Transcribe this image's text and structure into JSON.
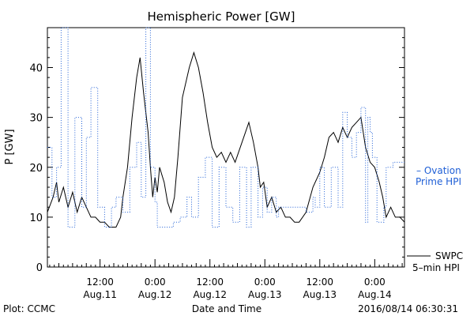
{
  "chart_data": {
    "type": "line",
    "title": "Hemispheric Power [GW]",
    "xlabel": "Date and Time",
    "ylabel": "P [GW]",
    "ylim": [
      0,
      48
    ],
    "xlim": [
      "2016-08-11T00:30",
      "2016-08-14T06:30"
    ],
    "y_ticks": [
      0,
      10,
      20,
      30,
      40
    ],
    "x_ticks": [
      {
        "t": "2016-08-11T12:00",
        "time": "12:00",
        "date": "Aug.11"
      },
      {
        "t": "2016-08-12T00:00",
        "time": "0:00",
        "date": "Aug.12"
      },
      {
        "t": "2016-08-12T12:00",
        "time": "12:00",
        "date": "Aug.12"
      },
      {
        "t": "2016-08-13T00:00",
        "time": "0:00",
        "date": "Aug.13"
      },
      {
        "t": "2016-08-13T12:00",
        "time": "12:00",
        "date": "Aug.13"
      },
      {
        "t": "2016-08-14T00:00",
        "time": "0:00",
        "date": "Aug.14"
      }
    ],
    "grid": false,
    "legend_position": "right",
    "series": [
      {
        "name": "SWPC 5-min HPI",
        "color": "#000000",
        "style": "solid",
        "points": [
          [
            "2016-08-11T00:30",
            11
          ],
          [
            "2016-08-11T01:45",
            14
          ],
          [
            "2016-08-11T02:30",
            17
          ],
          [
            "2016-08-11T03:00",
            13
          ],
          [
            "2016-08-11T04:00",
            16
          ],
          [
            "2016-08-11T05:00",
            12
          ],
          [
            "2016-08-11T06:00",
            15
          ],
          [
            "2016-08-11T07:00",
            11
          ],
          [
            "2016-08-11T08:00",
            14
          ],
          [
            "2016-08-11T09:00",
            12
          ],
          [
            "2016-08-11T10:00",
            10
          ],
          [
            "2016-08-11T11:00",
            10
          ],
          [
            "2016-08-11T12:00",
            9
          ],
          [
            "2016-08-11T13:00",
            9
          ],
          [
            "2016-08-11T14:00",
            8
          ],
          [
            "2016-08-11T15:30",
            8
          ],
          [
            "2016-08-11T16:30",
            10
          ],
          [
            "2016-08-11T17:00",
            14
          ],
          [
            "2016-08-11T18:00",
            20
          ],
          [
            "2016-08-11T19:00",
            30
          ],
          [
            "2016-08-11T20:00",
            38
          ],
          [
            "2016-08-11T20:45",
            42
          ],
          [
            "2016-08-11T21:30",
            35
          ],
          [
            "2016-08-11T22:30",
            27
          ],
          [
            "2016-08-11T23:00",
            20
          ],
          [
            "2016-08-11T23:30",
            14
          ],
          [
            "2016-08-12T00:00",
            18
          ],
          [
            "2016-08-12T00:30",
            15
          ],
          [
            "2016-08-12T01:00",
            20
          ],
          [
            "2016-08-12T02:00",
            17
          ],
          [
            "2016-08-12T02:45",
            13
          ],
          [
            "2016-08-12T03:30",
            11
          ],
          [
            "2016-08-12T04:15",
            14
          ],
          [
            "2016-08-12T05:00",
            22
          ],
          [
            "2016-08-12T06:00",
            34
          ],
          [
            "2016-08-12T07:30",
            40
          ],
          [
            "2016-08-12T08:30",
            43
          ],
          [
            "2016-08-12T09:30",
            40
          ],
          [
            "2016-08-12T10:30",
            35
          ],
          [
            "2016-08-12T11:30",
            29
          ],
          [
            "2016-08-12T12:30",
            24
          ],
          [
            "2016-08-12T13:30",
            22
          ],
          [
            "2016-08-12T14:30",
            23
          ],
          [
            "2016-08-12T15:30",
            21
          ],
          [
            "2016-08-12T16:30",
            23
          ],
          [
            "2016-08-12T17:30",
            21
          ],
          [
            "2016-08-12T19:00",
            25
          ],
          [
            "2016-08-12T20:30",
            29
          ],
          [
            "2016-08-12T21:30",
            25
          ],
          [
            "2016-08-12T22:30",
            20
          ],
          [
            "2016-08-12T23:00",
            16
          ],
          [
            "2016-08-12T23:45",
            17
          ],
          [
            "2016-08-13T00:30",
            12
          ],
          [
            "2016-08-13T01:30",
            14
          ],
          [
            "2016-08-13T02:30",
            11
          ],
          [
            "2016-08-13T03:30",
            12
          ],
          [
            "2016-08-13T04:30",
            10
          ],
          [
            "2016-08-13T05:30",
            10
          ],
          [
            "2016-08-13T06:30",
            9
          ],
          [
            "2016-08-13T07:30",
            9
          ],
          [
            "2016-08-13T09:00",
            11
          ],
          [
            "2016-08-13T10:30",
            16
          ],
          [
            "2016-08-13T12:00",
            19
          ],
          [
            "2016-08-13T13:00",
            22
          ],
          [
            "2016-08-13T14:00",
            26
          ],
          [
            "2016-08-13T15:00",
            27
          ],
          [
            "2016-08-13T16:00",
            25
          ],
          [
            "2016-08-13T17:00",
            28
          ],
          [
            "2016-08-13T18:00",
            26
          ],
          [
            "2016-08-13T19:00",
            28
          ],
          [
            "2016-08-13T20:00",
            29
          ],
          [
            "2016-08-13T21:00",
            30
          ],
          [
            "2016-08-13T21:30",
            27
          ],
          [
            "2016-08-13T22:00",
            24
          ],
          [
            "2016-08-13T23:00",
            21
          ],
          [
            "2016-08-14T00:00",
            20
          ],
          [
            "2016-08-14T01:00",
            17
          ],
          [
            "2016-08-14T01:45",
            14
          ],
          [
            "2016-08-14T02:30",
            10
          ],
          [
            "2016-08-14T03:30",
            12
          ],
          [
            "2016-08-14T04:30",
            10
          ],
          [
            "2016-08-14T05:30",
            10
          ],
          [
            "2016-08-14T06:30",
            9
          ]
        ]
      },
      {
        "name": "Ovation Prime HPI",
        "color": "#1f5fd6",
        "style": "dotted",
        "points": [
          [
            "2016-08-11T00:30",
            24
          ],
          [
            "2016-08-11T01:30",
            24
          ],
          [
            "2016-08-11T01:30",
            14
          ],
          [
            "2016-08-11T02:30",
            14
          ],
          [
            "2016-08-11T02:30",
            20
          ],
          [
            "2016-08-11T03:30",
            20
          ],
          [
            "2016-08-11T03:30",
            48
          ],
          [
            "2016-08-11T05:00",
            48
          ],
          [
            "2016-08-11T05:00",
            8
          ],
          [
            "2016-08-11T06:30",
            8
          ],
          [
            "2016-08-11T06:30",
            30
          ],
          [
            "2016-08-11T08:00",
            30
          ],
          [
            "2016-08-11T08:00",
            12
          ],
          [
            "2016-08-11T09:00",
            12
          ],
          [
            "2016-08-11T09:00",
            26
          ],
          [
            "2016-08-11T10:00",
            26
          ],
          [
            "2016-08-11T10:00",
            36
          ],
          [
            "2016-08-11T11:30",
            36
          ],
          [
            "2016-08-11T11:30",
            12
          ],
          [
            "2016-08-11T13:00",
            12
          ],
          [
            "2016-08-11T13:00",
            8
          ],
          [
            "2016-08-11T14:30",
            8
          ],
          [
            "2016-08-11T14:30",
            12
          ],
          [
            "2016-08-11T15:30",
            12
          ],
          [
            "2016-08-11T15:30",
            14
          ],
          [
            "2016-08-11T17:00",
            14
          ],
          [
            "2016-08-11T17:00",
            11
          ],
          [
            "2016-08-11T18:30",
            11
          ],
          [
            "2016-08-11T18:30",
            20
          ],
          [
            "2016-08-11T20:00",
            20
          ],
          [
            "2016-08-11T20:00",
            25
          ],
          [
            "2016-08-11T21:00",
            25
          ],
          [
            "2016-08-11T21:00",
            14
          ],
          [
            "2016-08-11T22:00",
            14
          ],
          [
            "2016-08-11T22:00",
            48
          ],
          [
            "2016-08-11T23:00",
            48
          ],
          [
            "2016-08-11T23:00",
            20
          ],
          [
            "2016-08-12T00:00",
            20
          ],
          [
            "2016-08-12T00:00",
            13
          ],
          [
            "2016-08-12T00:30",
            13
          ],
          [
            "2016-08-12T00:30",
            8
          ],
          [
            "2016-08-12T04:00",
            8
          ],
          [
            "2016-08-12T04:00",
            9
          ],
          [
            "2016-08-12T05:30",
            9
          ],
          [
            "2016-08-12T05:30",
            10
          ],
          [
            "2016-08-12T07:00",
            10
          ],
          [
            "2016-08-12T07:00",
            14
          ],
          [
            "2016-08-12T08:00",
            14
          ],
          [
            "2016-08-12T08:00",
            10
          ],
          [
            "2016-08-12T09:30",
            10
          ],
          [
            "2016-08-12T09:30",
            18
          ],
          [
            "2016-08-12T11:00",
            18
          ],
          [
            "2016-08-12T11:00",
            22
          ],
          [
            "2016-08-12T12:30",
            22
          ],
          [
            "2016-08-12T12:30",
            8
          ],
          [
            "2016-08-12T14:00",
            8
          ],
          [
            "2016-08-12T14:00",
            20
          ],
          [
            "2016-08-12T15:30",
            20
          ],
          [
            "2016-08-12T15:30",
            12
          ],
          [
            "2016-08-12T17:00",
            12
          ],
          [
            "2016-08-12T17:00",
            9
          ],
          [
            "2016-08-12T18:30",
            9
          ],
          [
            "2016-08-12T18:30",
            20
          ],
          [
            "2016-08-12T20:00",
            20
          ],
          [
            "2016-08-12T20:00",
            8
          ],
          [
            "2016-08-12T21:00",
            8
          ],
          [
            "2016-08-12T21:00",
            20
          ],
          [
            "2016-08-12T22:30",
            20
          ],
          [
            "2016-08-12T22:30",
            10
          ],
          [
            "2016-08-12T23:30",
            10
          ],
          [
            "2016-08-12T23:30",
            16
          ],
          [
            "2016-08-13T00:30",
            16
          ],
          [
            "2016-08-13T00:30",
            11
          ],
          [
            "2016-08-13T01:30",
            11
          ],
          [
            "2016-08-13T01:30",
            14
          ],
          [
            "2016-08-13T02:30",
            14
          ],
          [
            "2016-08-13T02:30",
            10
          ],
          [
            "2016-08-13T03:00",
            10
          ],
          [
            "2016-08-13T03:00",
            12
          ],
          [
            "2016-08-13T09:00",
            12
          ],
          [
            "2016-08-13T09:00",
            11
          ],
          [
            "2016-08-13T10:30",
            11
          ],
          [
            "2016-08-13T10:30",
            14
          ],
          [
            "2016-08-13T11:00",
            14
          ],
          [
            "2016-08-13T11:00",
            12
          ],
          [
            "2016-08-13T12:00",
            12
          ],
          [
            "2016-08-13T12:00",
            20
          ],
          [
            "2016-08-13T13:00",
            20
          ],
          [
            "2016-08-13T13:00",
            12
          ],
          [
            "2016-08-13T14:30",
            12
          ],
          [
            "2016-08-13T14:30",
            20
          ],
          [
            "2016-08-13T16:00",
            20
          ],
          [
            "2016-08-13T16:00",
            12
          ],
          [
            "2016-08-13T17:00",
            12
          ],
          [
            "2016-08-13T17:00",
            31
          ],
          [
            "2016-08-13T18:00",
            31
          ],
          [
            "2016-08-13T18:00",
            26
          ],
          [
            "2016-08-13T19:00",
            26
          ],
          [
            "2016-08-13T19:00",
            22
          ],
          [
            "2016-08-13T20:00",
            22
          ],
          [
            "2016-08-13T20:00",
            27
          ],
          [
            "2016-08-13T21:00",
            27
          ],
          [
            "2016-08-13T21:00",
            32
          ],
          [
            "2016-08-13T22:00",
            32
          ],
          [
            "2016-08-13T22:00",
            9
          ],
          [
            "2016-08-13T22:30",
            9
          ],
          [
            "2016-08-13T22:30",
            30
          ],
          [
            "2016-08-13T23:00",
            30
          ],
          [
            "2016-08-13T23:00",
            27
          ],
          [
            "2016-08-13T23:30",
            27
          ],
          [
            "2016-08-13T23:30",
            22
          ],
          [
            "2016-08-14T00:30",
            22
          ],
          [
            "2016-08-14T00:30",
            9
          ],
          [
            "2016-08-14T02:00",
            9
          ],
          [
            "2016-08-14T02:00",
            12
          ],
          [
            "2016-08-14T02:30",
            12
          ],
          [
            "2016-08-14T02:30",
            20
          ],
          [
            "2016-08-14T04:00",
            20
          ],
          [
            "2016-08-14T04:00",
            21
          ],
          [
            "2016-08-14T06:30",
            21
          ]
        ]
      }
    ]
  },
  "legend": {
    "ovation_line1": "– Ovation",
    "ovation_line2": "Prime HPI",
    "swpc_line1": "SWPC",
    "swpc_line2": "5–min HPI"
  },
  "footer": {
    "plot_credit": "Plot: CCMC",
    "timestamp": "2016/08/14 06:30:31"
  }
}
